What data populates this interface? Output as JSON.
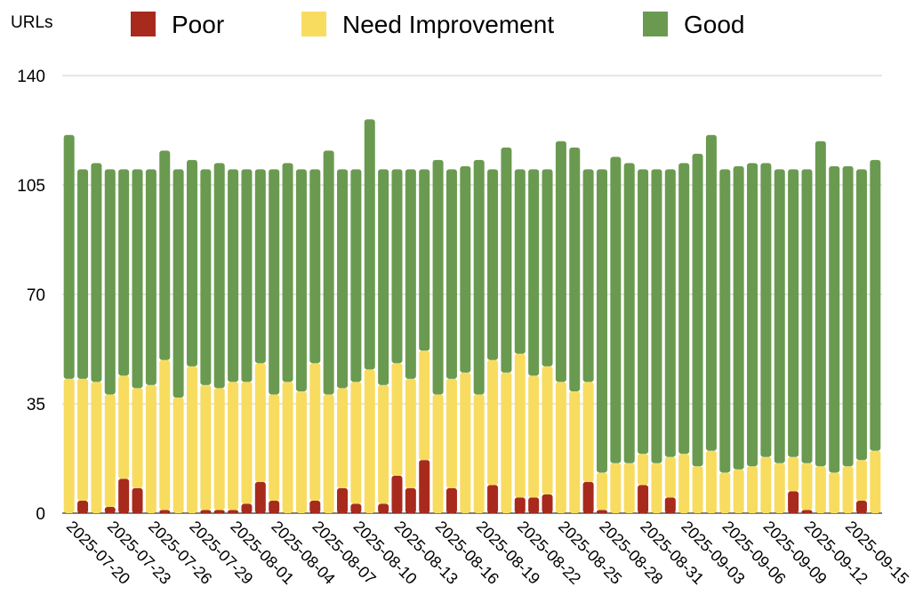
{
  "chart_data": {
    "type": "stacked-bar",
    "y_label": "URLs",
    "categories": [
      "2025-07-20",
      null,
      null,
      "2025-07-23",
      null,
      null,
      "2025-07-26",
      null,
      null,
      "2025-07-29",
      null,
      null,
      "2025-08-01",
      null,
      null,
      "2025-08-04",
      null,
      null,
      "2025-08-07",
      null,
      null,
      "2025-08-10",
      null,
      null,
      "2025-08-13",
      null,
      null,
      "2025-08-16",
      null,
      null,
      "2025-08-19",
      null,
      null,
      "2025-08-22",
      null,
      null,
      "2025-08-25",
      null,
      null,
      "2025-08-28",
      null,
      null,
      "2025-08-31",
      null,
      null,
      "2025-09-03",
      null,
      null,
      "2025-09-06",
      null,
      null,
      "2025-09-09",
      null,
      null,
      "2025-09-12",
      null,
      null,
      "2025-09-15",
      null,
      null
    ],
    "series": [
      {
        "name": "Poor",
        "color": "#a82a1c",
        "values": [
          0,
          4,
          0,
          2,
          11,
          8,
          0,
          1,
          0,
          0,
          1,
          1,
          1,
          3,
          10,
          4,
          0,
          0,
          4,
          0,
          8,
          3,
          0,
          3,
          12,
          8,
          17,
          0,
          8,
          0,
          0,
          9,
          0,
          5,
          5,
          6,
          0,
          0,
          10,
          1,
          0,
          0,
          9,
          0,
          5,
          0,
          0,
          0,
          0,
          0,
          0,
          0,
          0,
          7,
          1,
          0,
          0,
          0,
          4,
          0
        ]
      },
      {
        "name": "Need Improvement",
        "color": "#f8dc60",
        "values": [
          43,
          39,
          42,
          36,
          33,
          32,
          41,
          48,
          37,
          47,
          40,
          39,
          41,
          39,
          38,
          34,
          42,
          39,
          44,
          38,
          32,
          39,
          46,
          38,
          36,
          35,
          35,
          38,
          35,
          45,
          38,
          40,
          45,
          46,
          39,
          41,
          42,
          39,
          32,
          12,
          16,
          16,
          10,
          16,
          13,
          19,
          15,
          20,
          13,
          14,
          15,
          18,
          16,
          11,
          15,
          15,
          13,
          15,
          13,
          20
        ]
      },
      {
        "name": "Good",
        "color": "#6a9a50",
        "values": [
          78,
          67,
          70,
          72,
          66,
          70,
          69,
          67,
          73,
          66,
          69,
          72,
          68,
          68,
          62,
          72,
          70,
          71,
          62,
          78,
          70,
          68,
          80,
          69,
          62,
          67,
          58,
          75,
          67,
          66,
          75,
          61,
          72,
          59,
          66,
          63,
          77,
          78,
          68,
          97,
          98,
          96,
          91,
          94,
          92,
          93,
          100,
          101,
          97,
          97,
          97,
          94,
          94,
          92,
          94,
          104,
          98,
          96,
          93,
          93
        ]
      }
    ],
    "ylim": [
      0,
      140
    ],
    "yticks": [
      0,
      35,
      70,
      105,
      140
    ],
    "grid": true
  }
}
